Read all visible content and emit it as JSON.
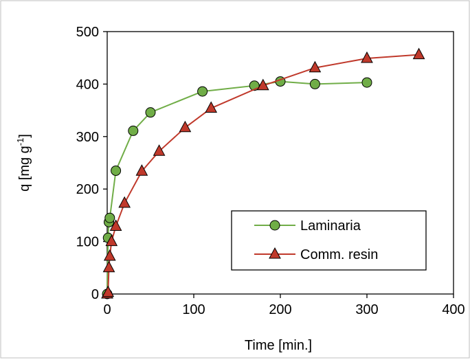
{
  "chart_data": {
    "type": "line",
    "xlabel": "Time [min.]",
    "ylabel_main": "q [mg g",
    "ylabel_sup": "-1",
    "ylabel_close": "]",
    "xlim": [
      0,
      400
    ],
    "ylim": [
      0,
      500
    ],
    "x_ticks": [
      0,
      100,
      200,
      300,
      400
    ],
    "y_ticks": [
      0,
      100,
      200,
      300,
      400,
      500
    ],
    "grid": false,
    "legend_position": "bottom-right",
    "series": [
      {
        "name": "Laminaria",
        "marker": "circle",
        "line_color": "#70AD47",
        "marker_fill": "#70AD47",
        "x": [
          0,
          1,
          2,
          3,
          10,
          30,
          50,
          110,
          170,
          200,
          240,
          300
        ],
        "y": [
          0,
          107,
          137,
          145,
          235,
          311,
          346,
          386,
          397,
          405,
          400,
          403
        ]
      },
      {
        "name": "Comm. resin",
        "marker": "triangle",
        "line_color": "#C0392B",
        "marker_fill": "#C0392B",
        "x": [
          0,
          1,
          2,
          3,
          5,
          10,
          20,
          40,
          60,
          90,
          120,
          180,
          240,
          300,
          360
        ],
        "y": [
          0,
          3,
          50,
          72,
          100,
          129,
          173,
          234,
          272,
          317,
          354,
          397,
          431,
          449,
          456
        ]
      }
    ]
  }
}
